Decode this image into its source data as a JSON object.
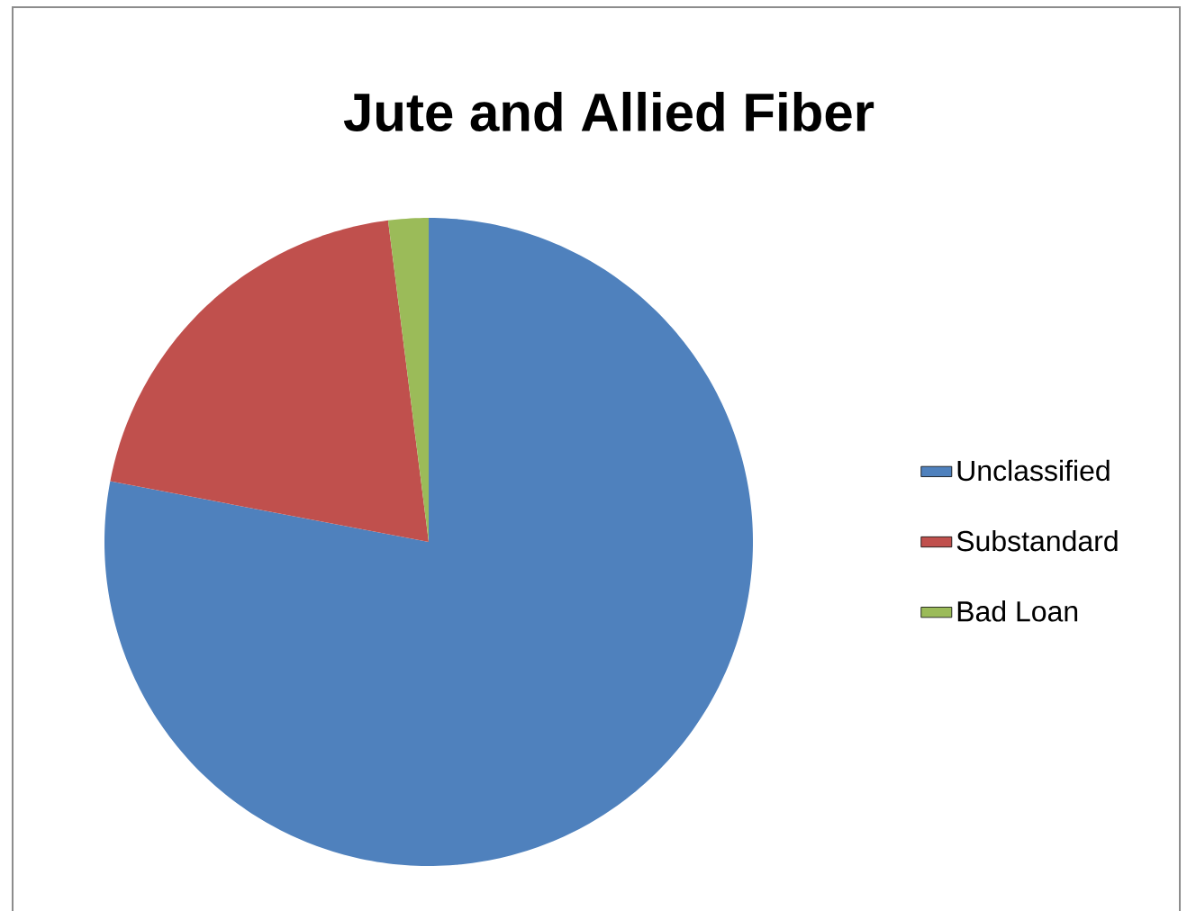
{
  "chart_data": {
    "type": "pie",
    "title": "Jute and Allied Fiber",
    "categories": [
      "Unclassified",
      "Substandard",
      "Bad Loan"
    ],
    "values": [
      78,
      20,
      2
    ],
    "colors": [
      "#4f81bd",
      "#c0504d",
      "#9bbb59"
    ],
    "legend": "right"
  }
}
